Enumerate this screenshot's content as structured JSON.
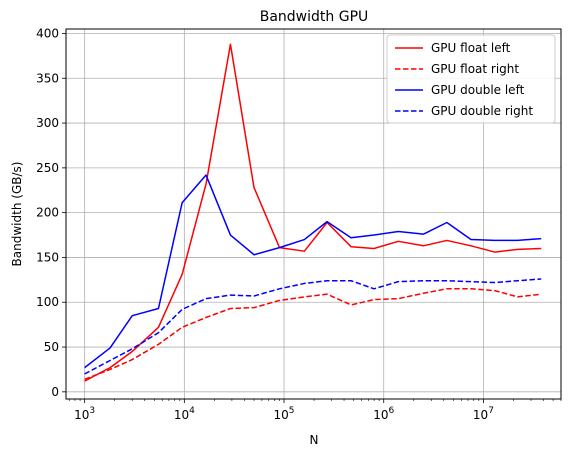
{
  "chart_data": {
    "type": "line",
    "title": "Bandwidth GPU",
    "xlabel": "N",
    "ylabel": "Bandwidth (GB/s)",
    "xscale": "log",
    "xlim": [
      650,
      60000000
    ],
    "ylim": [
      -8,
      405
    ],
    "xticks": [
      1000,
      10000,
      100000,
      1000000,
      10000000
    ],
    "xtick_labels": [
      {
        "base": "10",
        "exp": "3"
      },
      {
        "base": "10",
        "exp": "4"
      },
      {
        "base": "10",
        "exp": "5"
      },
      {
        "base": "10",
        "exp": "6"
      },
      {
        "base": "10",
        "exp": "7"
      }
    ],
    "yticks": [
      0,
      50,
      100,
      150,
      200,
      250,
      300,
      350,
      400
    ],
    "ytick_labels": [
      "0",
      "50",
      "100",
      "150",
      "200",
      "250",
      "300",
      "350",
      "400"
    ],
    "grid": true,
    "legend": "top-right",
    "x": [
      1000,
      1800,
      3000,
      5500,
      9500,
      16500,
      29000,
      50000,
      90000,
      160000,
      270000,
      470000,
      800000,
      1400000,
      2500000,
      4300000,
      7500000,
      13000000,
      22000000,
      38000000
    ],
    "series": [
      {
        "name": "GPU float left",
        "color": "#ff0000",
        "dash": "solid",
        "values": [
          12,
          27,
          45,
          72,
          131,
          232,
          388,
          228,
          161,
          157,
          189,
          162,
          160,
          168,
          163,
          169,
          163,
          156,
          159,
          160
        ]
      },
      {
        "name": "GPU float right",
        "color": "#ff0000",
        "dash": "dashed",
        "values": [
          14,
          25,
          36,
          53,
          72,
          83,
          93,
          94,
          102,
          106,
          109,
          97,
          103,
          104,
          110,
          115,
          115,
          113,
          106,
          109
        ]
      },
      {
        "name": "GPU double left",
        "color": "#0000ff",
        "dash": "solid",
        "values": [
          27,
          49,
          85,
          93,
          211,
          242,
          175,
          153,
          161,
          170,
          190,
          172,
          175,
          179,
          176,
          189,
          170,
          169,
          169,
          171
        ]
      },
      {
        "name": "GPU double right",
        "color": "#0000ff",
        "dash": "dashed",
        "values": [
          20,
          35,
          48,
          66,
          92,
          104,
          108,
          107,
          115,
          121,
          124,
          124,
          115,
          123,
          124,
          124,
          123,
          122,
          124,
          126
        ]
      }
    ]
  }
}
